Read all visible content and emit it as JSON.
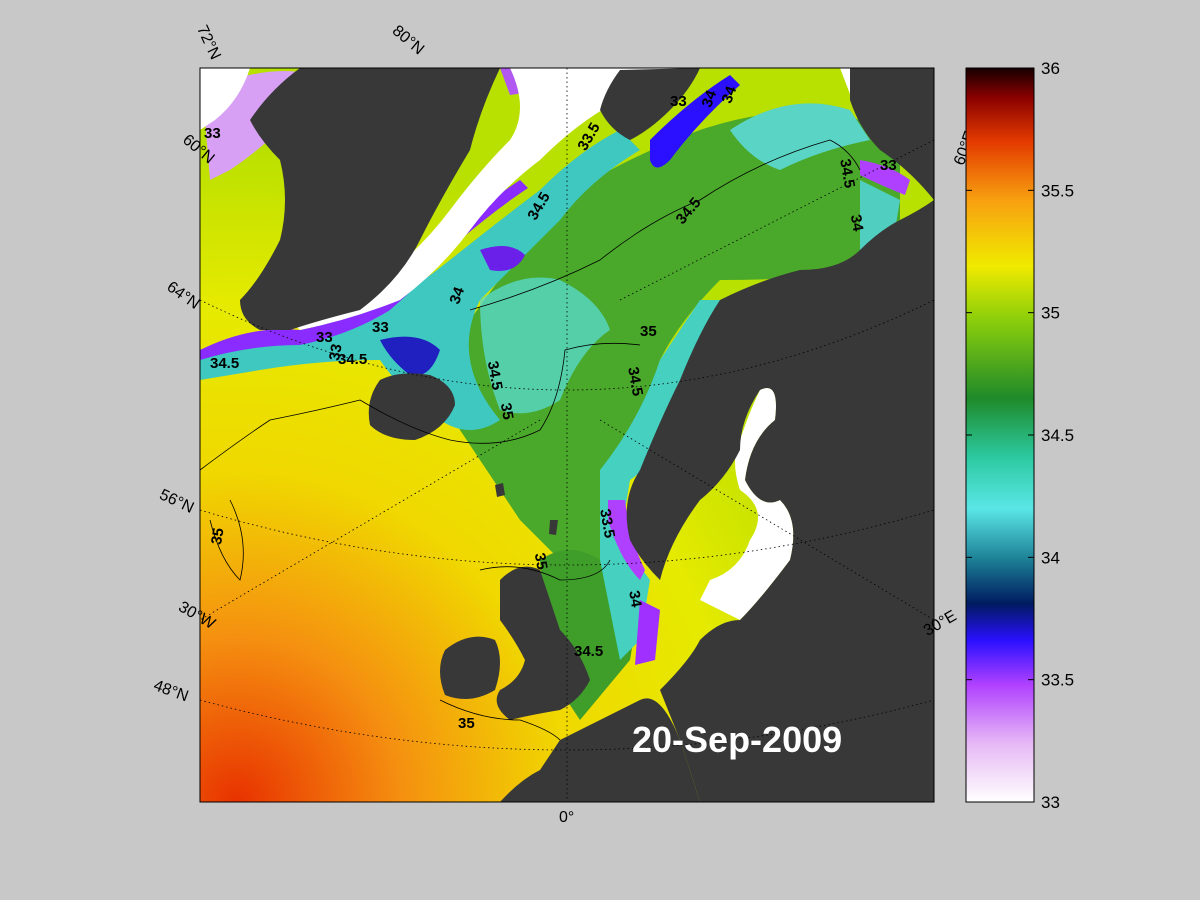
{
  "date_label": "20-Sep-2009",
  "colorbar": {
    "min": 33,
    "max": 36,
    "ticks": [
      "36",
      "35.5",
      "35",
      "34.5",
      "34",
      "33.5",
      "33"
    ]
  },
  "graticule_labels": {
    "lat_72": "72°N",
    "lat_80": "80°N",
    "lat_60_left": "60°N",
    "lat_64": "64°N",
    "lat_56": "56°N",
    "lat_30w": "30°W",
    "lat_48": "48°N",
    "lon_0": "0°",
    "lon_30e": "30°E",
    "lon_60e": "60°E"
  },
  "contour_labels": {
    "c1": "33",
    "c2": "33",
    "c3": "33",
    "c4": "34.5",
    "c5": "34",
    "c6": "34.5",
    "c7": "34.5",
    "c8": "35",
    "c9": "34.5",
    "c10": "35",
    "c11": "34.5",
    "c12": "35",
    "c13": "35",
    "c14": "34.5",
    "c15": "35",
    "c16": "33.5",
    "c17": "34",
    "c18": "33",
    "c19": "34.5",
    "c20": "34",
    "c21": "33",
    "c22": "34",
    "c23": "33.5",
    "c24": "34",
    "c25": "33",
    "c26": "34.5"
  },
  "colors": {
    "land": "#3a3a3a",
    "ice": "#ffffff",
    "background": "#c8c8c8"
  }
}
